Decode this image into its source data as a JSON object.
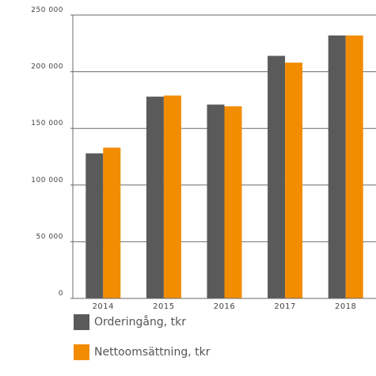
{
  "chart_data": {
    "type": "bar",
    "categories": [
      "2014",
      "2015",
      "2016",
      "2017",
      "2018"
    ],
    "series": [
      {
        "name": "Orderingång, tkr",
        "color": "#5a5a5a",
        "values": [
          128000,
          178000,
          171000,
          214000,
          232000
        ]
      },
      {
        "name": "Nettoomsättning, tkr",
        "color": "#f28c00",
        "values": [
          133000,
          179000,
          169500,
          208000,
          232000
        ]
      }
    ],
    "ylim": [
      0,
      250000
    ],
    "yticks": [
      0,
      50000,
      100000,
      150000,
      200000,
      250000
    ],
    "ytick_labels": [
      "0",
      "50 000",
      "100 000",
      "150 000",
      "200 000",
      "250 000"
    ],
    "grid": true,
    "legend_position": "bottom-left"
  }
}
